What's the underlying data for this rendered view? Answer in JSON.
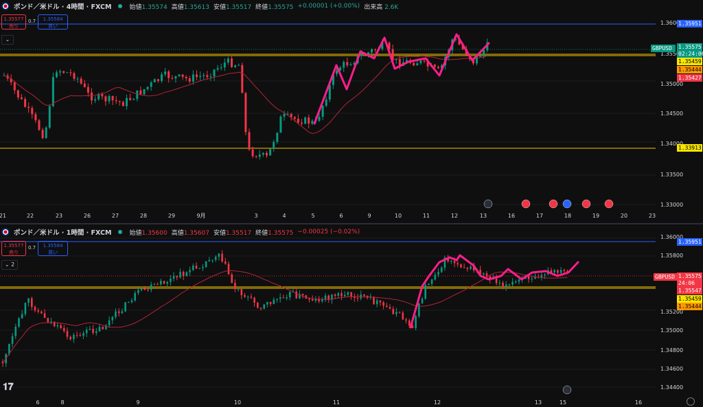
{
  "top_chart": {
    "symbol_title": "ポンド／米ドル · 4時間 · FXCM",
    "ohlc": [
      {
        "label": "始値",
        "value": "1.35574"
      },
      {
        "label": "高値",
        "value": "1.35613"
      },
      {
        "label": "安値",
        "value": "1.35517"
      },
      {
        "label": "終値",
        "value": "1.35575"
      }
    ],
    "change": "+0.00001 (+0.00%)",
    "volume_label": "出来高",
    "volume_value": "2.6K",
    "sell_price": "1.35577",
    "sell_label": "売り",
    "spread": "0.7",
    "buy_price": "1.35584",
    "buy_label": "買い",
    "collapse_label": "⌄",
    "price_axis": [
      "1.36000",
      "1.35500",
      "1.35000",
      "1.34500",
      "1.34000",
      "1.33500",
      "1.33000"
    ],
    "time_axis": [
      "21",
      "22",
      "23",
      "26",
      "27",
      "28",
      "29",
      "9月",
      "3",
      "4",
      "5",
      "6",
      "9",
      "10",
      "11",
      "12",
      "13",
      "16",
      "17",
      "18",
      "19",
      "20",
      "23"
    ],
    "price_tags": [
      {
        "text": "1.35951",
        "bg": "#2962ff",
        "fg": "#ffffff"
      },
      {
        "text": "GBPUSD",
        "bg": "#089981",
        "fg": "#ffffff"
      },
      {
        "text": "1.35575",
        "bg": "#089981",
        "fg": "#ffffff"
      },
      {
        "text": "02:24:06",
        "bg": "#089981",
        "fg": "#ffffff"
      },
      {
        "text": "1.35459",
        "bg": "#f7e600",
        "fg": "#000000"
      },
      {
        "text": "1.35444",
        "bg": "#ff9800",
        "fg": "#000000"
      },
      {
        "text": "1.35427",
        "bg": "#f23645",
        "fg": "#ffffff"
      },
      {
        "text": "1.33913",
        "bg": "#f7e600",
        "fg": "#000000"
      }
    ]
  },
  "bottom_chart": {
    "symbol_title": "ポンド／米ドル · 1時間 · FXCM",
    "ohlc": [
      {
        "label": "始値",
        "value": "1.35600"
      },
      {
        "label": "高値",
        "value": "1.35607"
      },
      {
        "label": "安値",
        "value": "1.35517"
      },
      {
        "label": "終値",
        "value": "1.35575"
      }
    ],
    "change": "−0.00025 (−0.02%)",
    "sell_price": "1.35577",
    "sell_label": "売り",
    "spread": "0.7",
    "buy_price": "1.35584",
    "buy_label": "買い",
    "collapse_label": "⌄ 2",
    "price_axis": [
      "1.36000",
      "1.35800",
      "1.35200",
      "1.35000",
      "1.34800",
      "1.34600",
      "1.34400"
    ],
    "time_axis": [
      "6",
      "8",
      "9",
      "10",
      "11",
      "12",
      "13",
      "15",
      "16"
    ],
    "price_tags": [
      {
        "text": "1.35951",
        "bg": "#2962ff",
        "fg": "#ffffff"
      },
      {
        "text": "GBPUSD",
        "bg": "#f23645",
        "fg": "#ffffff"
      },
      {
        "text": "1.35575",
        "bg": "#f23645",
        "fg": "#ffffff"
      },
      {
        "text": "24:06",
        "bg": "#f23645",
        "fg": "#ffffff"
      },
      {
        "text": "1.35547",
        "bg": "#f23645",
        "fg": "#ffffff"
      },
      {
        "text": "1.35459",
        "bg": "#f7e600",
        "fg": "#000000"
      },
      {
        "text": "1.35444",
        "bg": "#ff9800",
        "fg": "#000000"
      }
    ]
  },
  "colors": {
    "background": "#0f0f0f",
    "bull": "#089981",
    "bear": "#f23645",
    "hline_gold": "#f7c600",
    "hline_blue": "#2962ff",
    "ma": "#b2243a",
    "trendline": "#ff1e8c"
  },
  "icons": [
    "tradingview-logo-icon",
    "settings-icon",
    "event-lightning-icon",
    "economic-event-flag-icon"
  ]
}
